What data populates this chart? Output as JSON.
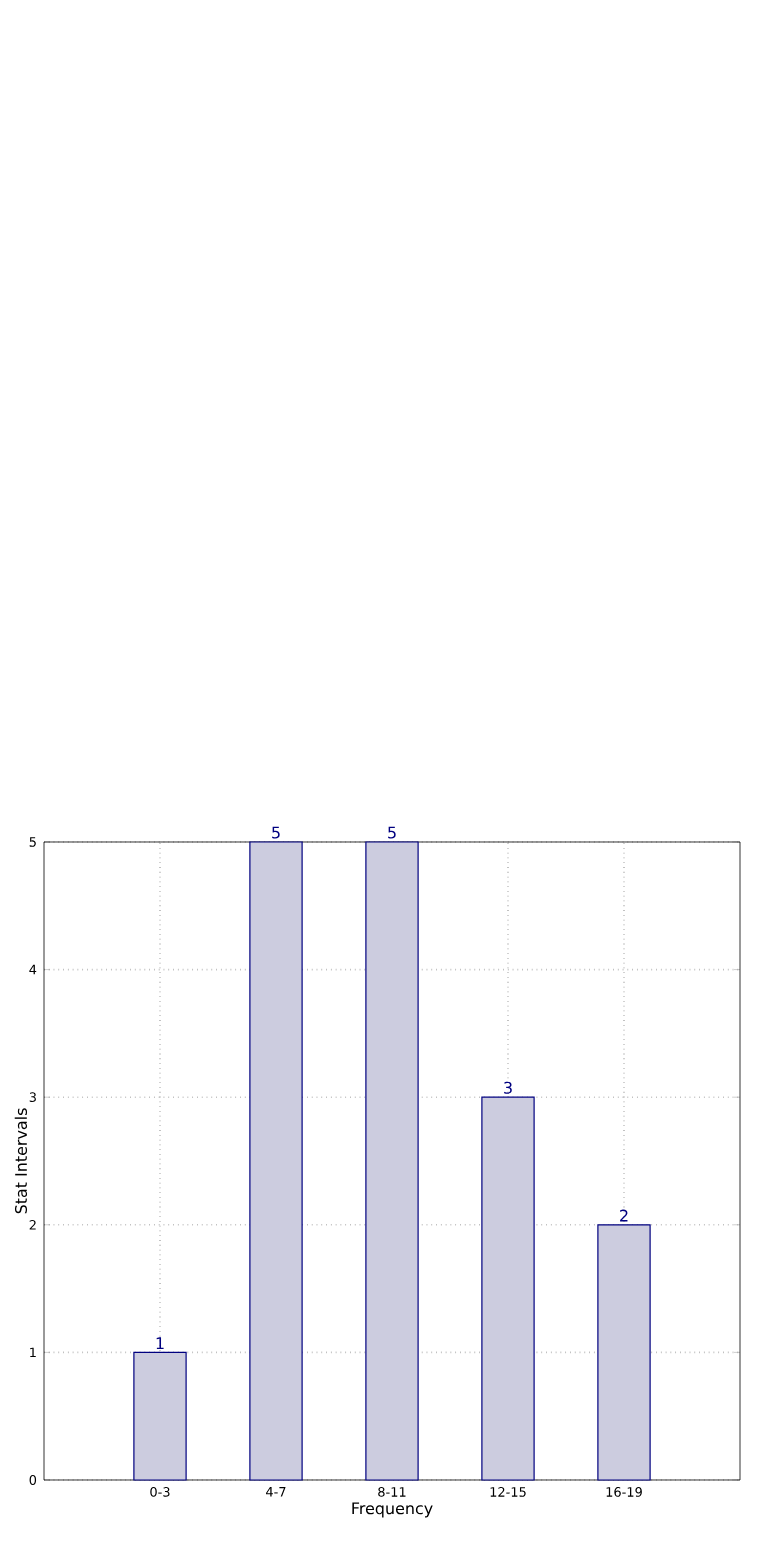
{
  "chart_data": {
    "type": "bar",
    "xlabel": "Frequency",
    "ylabel": "Stat Intervals",
    "categories": [
      "0-3",
      "4-7",
      "8-11",
      "12-15",
      "16-19"
    ],
    "values": [
      1,
      5,
      5,
      3,
      2
    ],
    "color": "#ccccdf",
    "ylim": [
      0,
      5
    ],
    "yticks": [
      0,
      1,
      2,
      3,
      4,
      5
    ],
    "grid": true,
    "data_labels": true
  }
}
